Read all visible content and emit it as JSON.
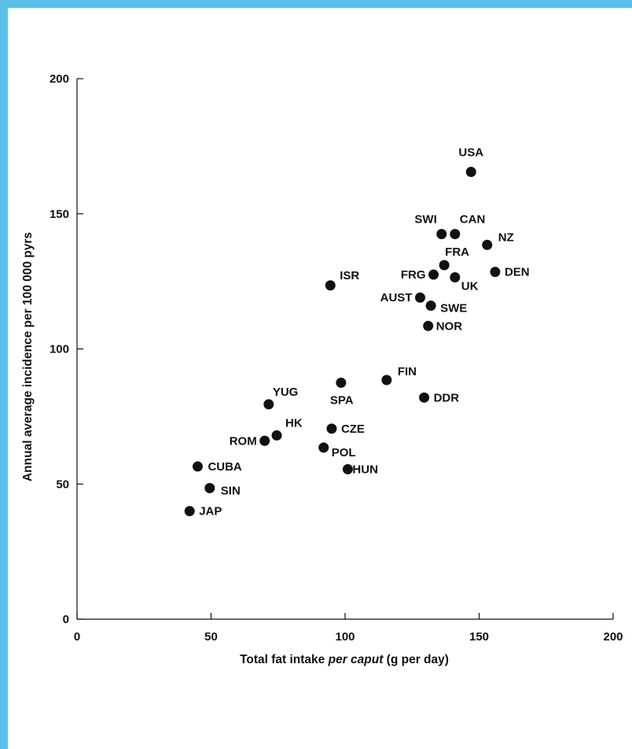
{
  "colors": {
    "frame": "#5bc0e8",
    "points": "#111111",
    "background": "#ffffff"
  },
  "chart_data": {
    "type": "scatter",
    "xlabel_parts": [
      "Total fat intake ",
      "per caput",
      " (g per day)"
    ],
    "ylabel": "Annual average incidence per 100 000 pyrs",
    "xlim": [
      0,
      200
    ],
    "ylim": [
      0,
      200
    ],
    "xticks": [
      0,
      50,
      100,
      150,
      200
    ],
    "yticks": [
      0,
      50,
      100,
      150,
      200
    ],
    "grid": false,
    "points": [
      {
        "label": "USA",
        "x": 147,
        "y": 165.5
      },
      {
        "label": "SWI",
        "x": 136,
        "y": 142.5
      },
      {
        "label": "CAN",
        "x": 141,
        "y": 142.5
      },
      {
        "label": "NZ",
        "x": 153,
        "y": 138.5
      },
      {
        "label": "FRA",
        "x": 137,
        "y": 131
      },
      {
        "label": "FRG",
        "x": 133,
        "y": 127.5
      },
      {
        "label": "UK",
        "x": 141,
        "y": 126.5
      },
      {
        "label": "DEN",
        "x": 156,
        "y": 128.5
      },
      {
        "label": "ISR",
        "x": 94.5,
        "y": 123.5
      },
      {
        "label": "AUST",
        "x": 128,
        "y": 119
      },
      {
        "label": "SWE",
        "x": 132,
        "y": 116
      },
      {
        "label": "NOR",
        "x": 131,
        "y": 108.5
      },
      {
        "label": "FIN",
        "x": 115.5,
        "y": 88.5
      },
      {
        "label": "SPA",
        "x": 98.5,
        "y": 87.5
      },
      {
        "label": "DDR",
        "x": 129.5,
        "y": 82
      },
      {
        "label": "YUG",
        "x": 71.5,
        "y": 79.5
      },
      {
        "label": "HK",
        "x": 74.5,
        "y": 68
      },
      {
        "label": "ROM",
        "x": 70,
        "y": 66
      },
      {
        "label": "CZE",
        "x": 95,
        "y": 70.5
      },
      {
        "label": "POL",
        "x": 92,
        "y": 63.5
      },
      {
        "label": "HUN",
        "x": 101,
        "y": 55.5
      },
      {
        "label": "CUBA",
        "x": 45,
        "y": 56.5
      },
      {
        "label": "SIN",
        "x": 49.5,
        "y": 48.5
      },
      {
        "label": "JAP",
        "x": 42,
        "y": 40
      }
    ]
  }
}
